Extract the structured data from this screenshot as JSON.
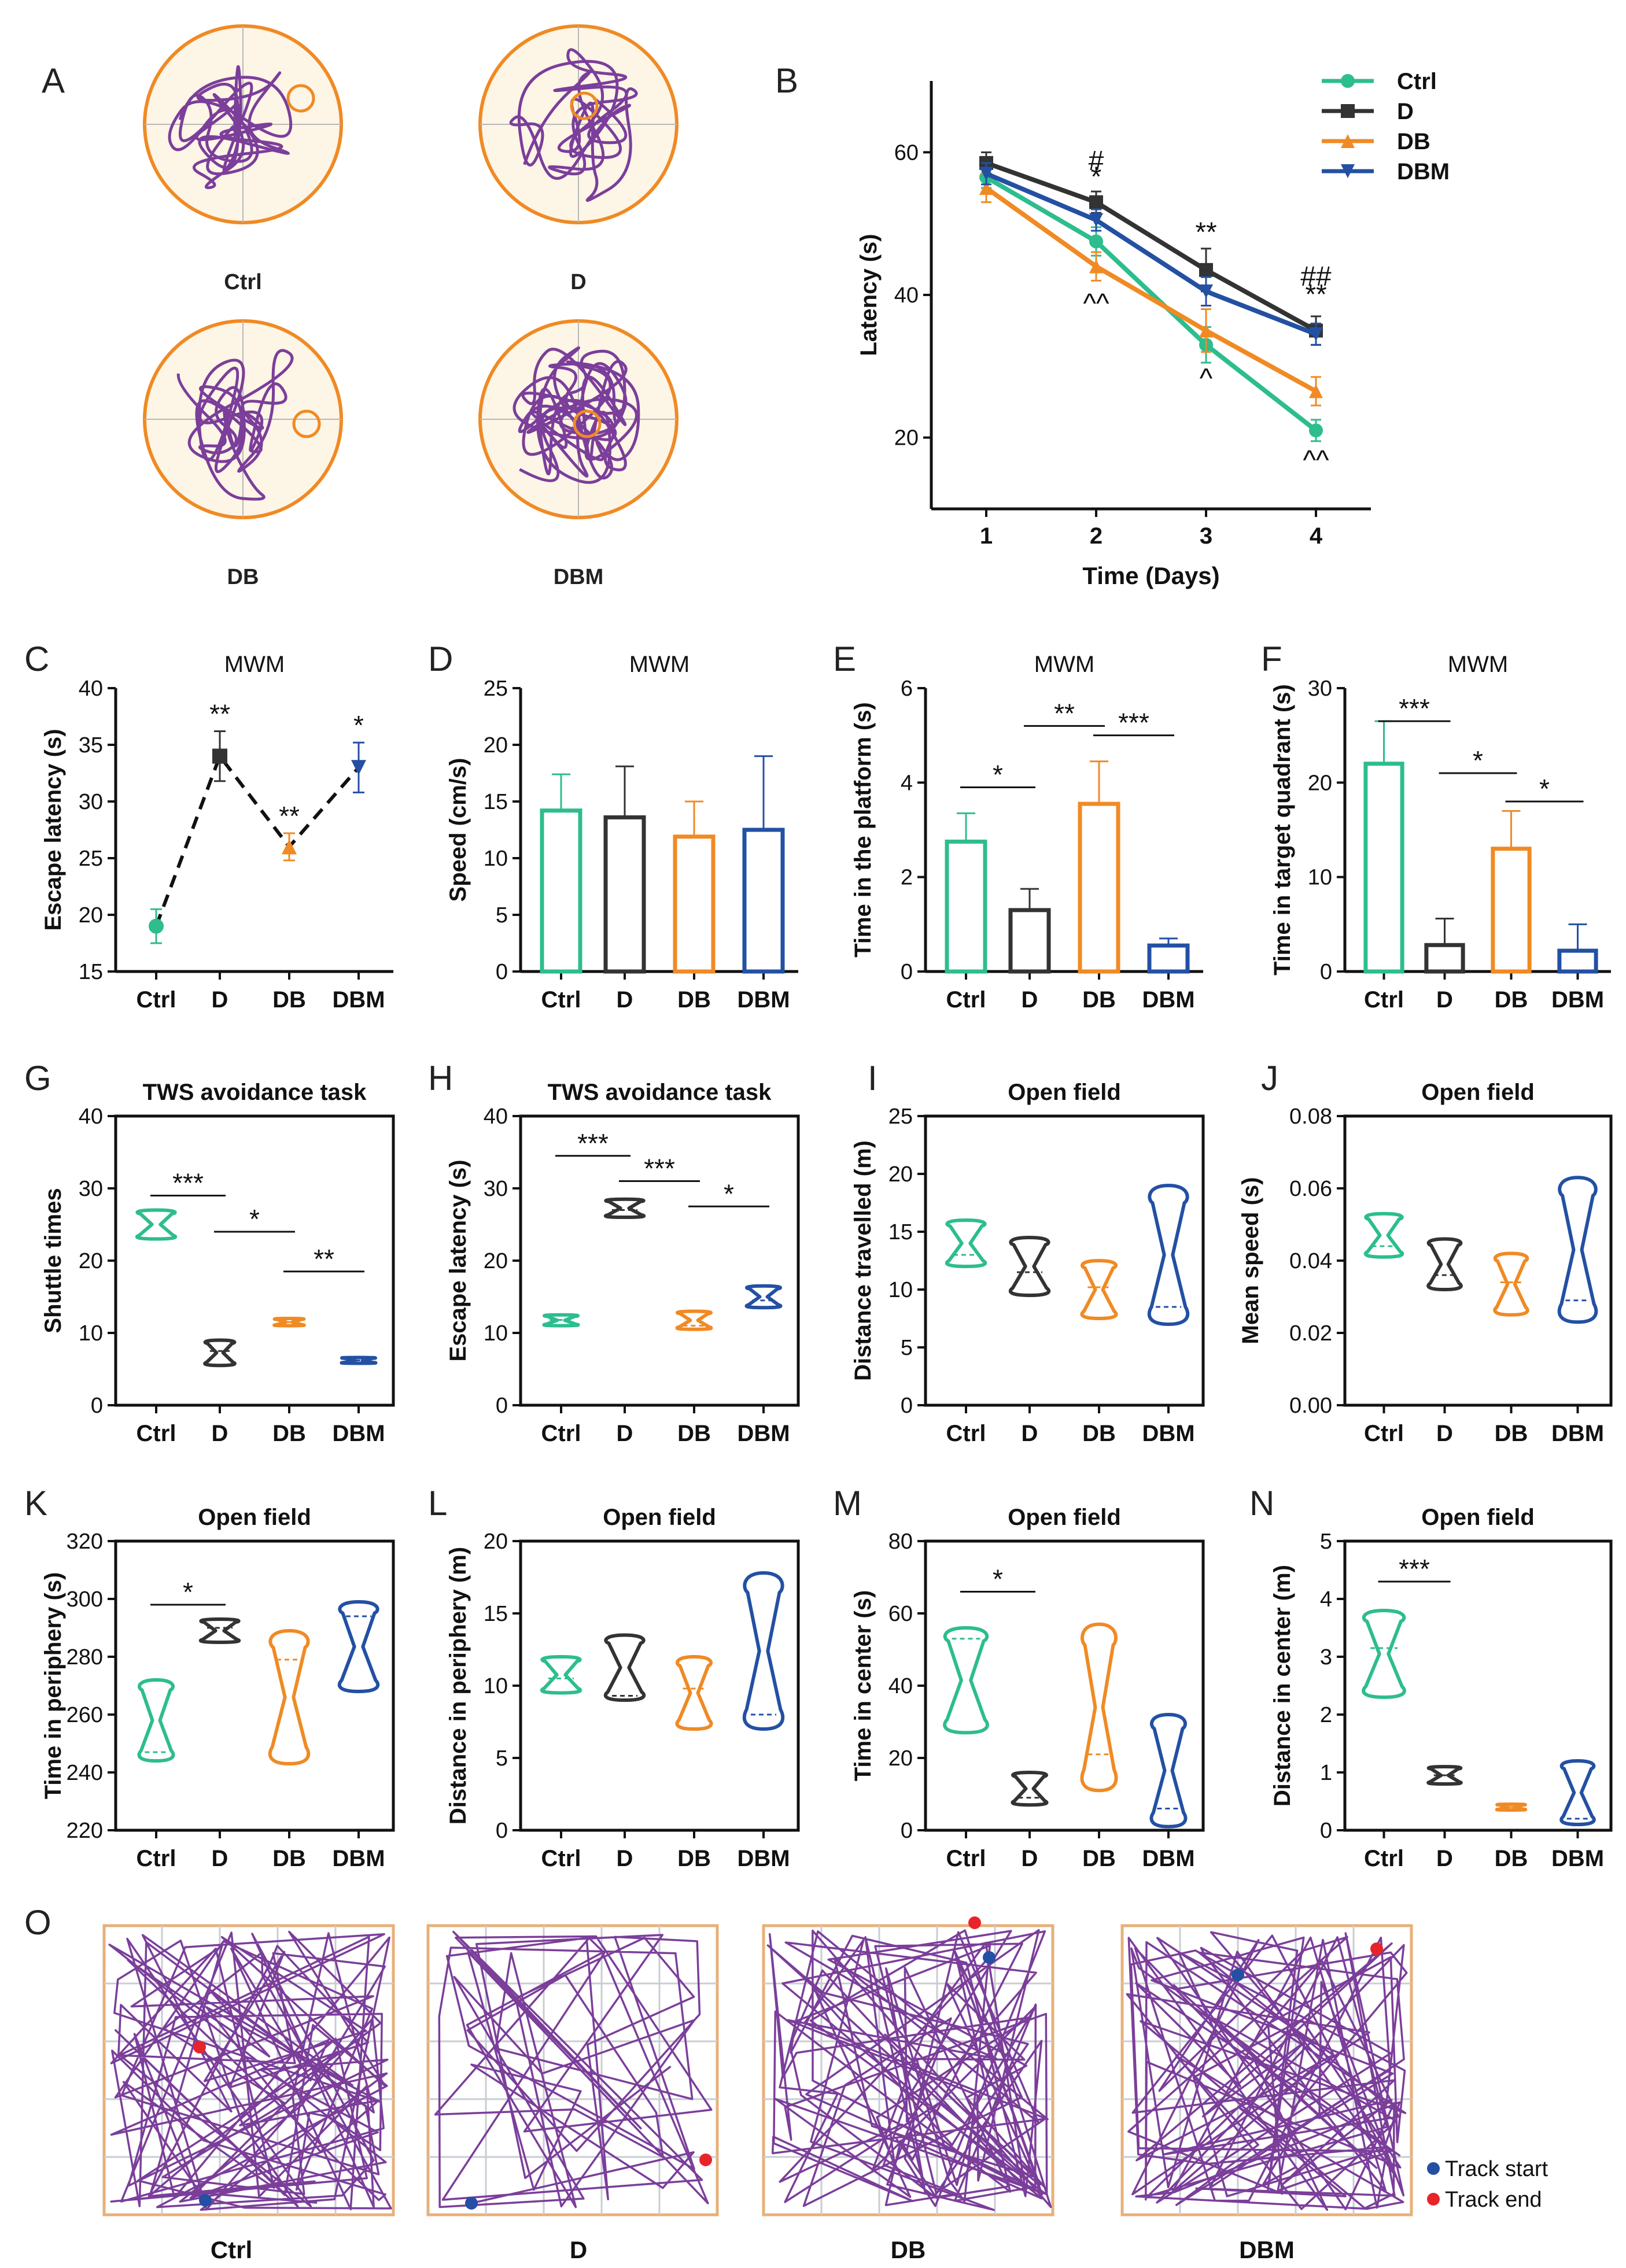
{
  "figure": {
    "panel_labels": [
      "A",
      "B",
      "C",
      "D",
      "E",
      "F",
      "G",
      "H",
      "I",
      "J",
      "K",
      "L",
      "M",
      "N",
      "O"
    ],
    "colors": {
      "Ctrl": "#2dbd8e",
      "D": "#333333",
      "DB": "#f08a24",
      "DBM": "#2350a3",
      "track": "#7b3e9a",
      "arena_fill": "#fdf5e6",
      "arena_edge": "#f08a24",
      "grid": "#c9cdd4",
      "start": "#2350a3",
      "end": "#e8242b"
    },
    "groups": [
      "Ctrl",
      "D",
      "DB",
      "DBM"
    ],
    "mwm_tracks": {
      "labels": [
        "Ctrl",
        "D",
        "DB",
        "DBM"
      ]
    },
    "open_field_tracks": {
      "labels": [
        "Ctrl",
        "D",
        "DB",
        "DBM"
      ],
      "legend": [
        "Track start",
        "Track end"
      ]
    }
  },
  "chart_data": [
    {
      "id": "B",
      "type": "line",
      "title": "",
      "xlabel": "Time (Days)",
      "ylabel": "Latency (s)",
      "x": [
        1,
        2,
        3,
        4
      ],
      "xlim": [
        0.5,
        4.5
      ],
      "ylim": [
        10,
        70
      ],
      "yticks": [
        20,
        40,
        60
      ],
      "series": [
        {
          "name": "Ctrl",
          "marker": "circle",
          "values": [
            56.5,
            47.5,
            33,
            21
          ],
          "err": [
            1.5,
            2,
            2.5,
            1.5
          ]
        },
        {
          "name": "D",
          "marker": "square",
          "values": [
            58.5,
            53,
            43.5,
            35
          ],
          "err": [
            1.5,
            1.5,
            3,
            2
          ]
        },
        {
          "name": "DB",
          "marker": "triangle",
          "values": [
            55,
            44,
            35,
            26.5
          ],
          "err": [
            2,
            2,
            3,
            2
          ]
        },
        {
          "name": "DBM",
          "marker": "tri-down",
          "values": [
            57,
            50.5,
            40.5,
            34.5
          ],
          "err": [
            1.5,
            1.5,
            2,
            1.5
          ]
        }
      ],
      "annotations": [
        {
          "x": 2,
          "y": 57.5,
          "text": "#"
        },
        {
          "x": 2,
          "y": 55.3,
          "text": "*"
        },
        {
          "x": 2,
          "y": 37.5,
          "text": "^^"
        },
        {
          "x": 3,
          "y": 47.5,
          "text": "**"
        },
        {
          "x": 3,
          "y": 27,
          "text": "^"
        },
        {
          "x": 4,
          "y": 41.3,
          "text": "##"
        },
        {
          "x": 4,
          "y": 38.8,
          "text": "**"
        },
        {
          "x": 4,
          "y": 15.5,
          "text": "^^"
        }
      ]
    },
    {
      "id": "C",
      "type": "scatter",
      "title": "MWM",
      "ylabel": "Escape latency (s)",
      "categories": [
        "Ctrl",
        "D",
        "DB",
        "DBM"
      ],
      "values": [
        19,
        34,
        26,
        33
      ],
      "err": [
        1.5,
        2.2,
        1.2,
        2.2
      ],
      "ylim": [
        15,
        40
      ],
      "yticks": [
        15,
        20,
        25,
        30,
        35,
        40
      ],
      "annotations": [
        {
          "i": 1,
          "text": "**"
        },
        {
          "i": 2,
          "text": "**"
        },
        {
          "i": 3,
          "text": "*"
        }
      ]
    },
    {
      "id": "D",
      "type": "bar",
      "title": "MWM",
      "ylabel": "Speed (cm/s)",
      "categories": [
        "Ctrl",
        "D",
        "DB",
        "DBM"
      ],
      "values": [
        14.2,
        13.6,
        11.9,
        12.5
      ],
      "err": [
        3.2,
        4.5,
        3.1,
        6.5
      ],
      "ylim": [
        0,
        25
      ],
      "yticks": [
        0,
        5,
        10,
        15,
        20,
        25
      ],
      "sig": []
    },
    {
      "id": "E",
      "type": "bar",
      "title": "MWM",
      "ylabel": "Time in the platform (s)",
      "categories": [
        "Ctrl",
        "D",
        "DB",
        "DBM"
      ],
      "values": [
        2.75,
        1.3,
        3.55,
        0.55
      ],
      "err": [
        0.6,
        0.45,
        0.9,
        0.15
      ],
      "ylim": [
        0,
        6
      ],
      "yticks": [
        0,
        2,
        4,
        6
      ],
      "sig": [
        {
          "a": 0,
          "b": 1,
          "y": 3.9,
          "text": "*"
        },
        {
          "a": 1,
          "b": 2,
          "y": 5.2,
          "text": "**"
        },
        {
          "a": 2,
          "b": 3,
          "y": 5.0,
          "text": "***"
        }
      ]
    },
    {
      "id": "F",
      "type": "bar",
      "title": "MWM",
      "ylabel": "Time in target quadrant (s)",
      "categories": [
        "Ctrl",
        "D",
        "DB",
        "DBM"
      ],
      "values": [
        22,
        2.8,
        13,
        2.2
      ],
      "err": [
        4.5,
        2.8,
        4,
        2.8
      ],
      "ylim": [
        0,
        30
      ],
      "yticks": [
        0,
        10,
        20,
        30
      ],
      "sig": [
        {
          "a": 0,
          "b": 1,
          "y": 26.5,
          "text": "***"
        },
        {
          "a": 1,
          "b": 2,
          "y": 21,
          "text": "*"
        },
        {
          "a": 2,
          "b": 3,
          "y": 18,
          "text": "*"
        }
      ]
    },
    {
      "id": "G",
      "type": "violin",
      "title": "TWS avoidance task",
      "ylabel": "Shuttle times",
      "categories": [
        "Ctrl",
        "D",
        "DB",
        "DBM"
      ],
      "ylim": [
        0,
        40
      ],
      "yticks": [
        0,
        10,
        20,
        30,
        40
      ],
      "violins": [
        {
          "min": 23,
          "max": 27,
          "median": 23,
          "width": 0.9
        },
        {
          "min": 5.5,
          "max": 9,
          "median": 7.5,
          "width": 0.7
        },
        {
          "min": 11,
          "max": 12,
          "median": 11.5,
          "width": 0.7
        },
        {
          "min": 5.8,
          "max": 6.6,
          "median": 6.2,
          "width": 0.8
        }
      ],
      "sig": [
        {
          "a": 0,
          "b": 1,
          "y": 29,
          "text": "***"
        },
        {
          "a": 1,
          "b": 2,
          "y": 24,
          "text": "*"
        },
        {
          "a": 2,
          "b": 3,
          "y": 18.5,
          "text": "**"
        }
      ]
    },
    {
      "id": "H",
      "type": "violin",
      "title": "TWS avoidance task",
      "ylabel": "Escape latency (s)",
      "categories": [
        "Ctrl",
        "D",
        "DB",
        "DBM"
      ],
      "ylim": [
        0,
        40
      ],
      "yticks": [
        0,
        10,
        20,
        30,
        40
      ],
      "violins": [
        {
          "min": 11,
          "max": 12.5,
          "median": 11.8,
          "width": 0.8
        },
        {
          "min": 26,
          "max": 28.5,
          "median": 27,
          "width": 0.9
        },
        {
          "min": 10.5,
          "max": 13,
          "median": 11,
          "width": 0.8
        },
        {
          "min": 13.5,
          "max": 16.5,
          "median": 14.5,
          "width": 0.8
        }
      ],
      "sig": [
        {
          "a": 0,
          "b": 1,
          "y": 34.5,
          "text": "***"
        },
        {
          "a": 1,
          "b": 2,
          "y": 31,
          "text": "***"
        },
        {
          "a": 2,
          "b": 3,
          "y": 27.5,
          "text": "*"
        }
      ]
    },
    {
      "id": "I",
      "type": "violin",
      "title": "Open field",
      "ylabel": "Distance travelled (m)",
      "categories": [
        "Ctrl",
        "D",
        "DB",
        "DBM"
      ],
      "ylim": [
        0,
        25
      ],
      "yticks": [
        0,
        5,
        10,
        15,
        20,
        25
      ],
      "violins": [
        {
          "min": 12,
          "max": 16,
          "median": 13,
          "width": 0.9
        },
        {
          "min": 9.5,
          "max": 14.5,
          "median": 11.5,
          "width": 0.9
        },
        {
          "min": 7.5,
          "max": 12.5,
          "median": 10.2,
          "width": 0.8
        },
        {
          "min": 7,
          "max": 19,
          "median": 8.5,
          "width": 0.9
        }
      ],
      "sig": []
    },
    {
      "id": "J",
      "type": "violin",
      "title": "Open field",
      "ylabel": "Mean speed (s)",
      "categories": [
        "Ctrl",
        "D",
        "DB",
        "DBM"
      ],
      "ylim": [
        0,
        0.08
      ],
      "yticks": [
        0,
        0.02,
        0.04,
        0.06,
        0.08
      ],
      "violins": [
        {
          "min": 0.041,
          "max": 0.053,
          "median": 0.044,
          "width": 0.9
        },
        {
          "min": 0.032,
          "max": 0.046,
          "median": 0.036,
          "width": 0.8
        },
        {
          "min": 0.025,
          "max": 0.042,
          "median": 0.034,
          "width": 0.8
        },
        {
          "min": 0.023,
          "max": 0.063,
          "median": 0.029,
          "width": 0.9
        }
      ],
      "sig": []
    },
    {
      "id": "K",
      "type": "violin",
      "title": "Open field",
      "ylabel": "Time in periphery (s)",
      "categories": [
        "Ctrl",
        "D",
        "DB",
        "DBM"
      ],
      "ylim": [
        220,
        320
      ],
      "yticks": [
        220,
        240,
        260,
        280,
        300,
        320
      ],
      "violins": [
        {
          "min": 244,
          "max": 272,
          "median": 247,
          "width": 0.8
        },
        {
          "min": 285,
          "max": 293,
          "median": 290,
          "width": 0.9
        },
        {
          "min": 243,
          "max": 289,
          "median": 279,
          "width": 0.9
        },
        {
          "min": 268,
          "max": 299,
          "median": 294,
          "width": 0.9
        }
      ],
      "sig": [
        {
          "a": 0,
          "b": 1,
          "y": 298,
          "text": "*"
        }
      ]
    },
    {
      "id": "L",
      "type": "violin",
      "title": "Open field",
      "ylabel": "Distance  in  periphery (m)",
      "categories": [
        "Ctrl",
        "D",
        "DB",
        "DBM"
      ],
      "ylim": [
        0,
        20
      ],
      "yticks": [
        0,
        5,
        10,
        15,
        20
      ],
      "violins": [
        {
          "min": 9.5,
          "max": 12,
          "median": 10.5,
          "width": 0.9
        },
        {
          "min": 9,
          "max": 13.5,
          "median": 9.3,
          "width": 0.9
        },
        {
          "min": 7,
          "max": 12,
          "median": 9.8,
          "width": 0.8
        },
        {
          "min": 7,
          "max": 17.8,
          "median": 8,
          "width": 0.9
        }
      ],
      "sig": []
    },
    {
      "id": "M",
      "type": "violin",
      "title": "Open field",
      "ylabel": "Time in center (s)",
      "categories": [
        "Ctrl",
        "D",
        "DB",
        "DBM"
      ],
      "ylim": [
        0,
        80
      ],
      "yticks": [
        0,
        20,
        40,
        60,
        80
      ],
      "violins": [
        {
          "min": 27,
          "max": 56,
          "median": 53,
          "width": 1.0
        },
        {
          "min": 7,
          "max": 16,
          "median": 9,
          "width": 0.8
        },
        {
          "min": 11,
          "max": 57,
          "median": 21,
          "width": 0.8
        },
        {
          "min": 1,
          "max": 32,
          "median": 6,
          "width": 0.8
        }
      ],
      "sig": [
        {
          "a": 0,
          "b": 1,
          "y": 66,
          "text": "*"
        }
      ]
    },
    {
      "id": "N",
      "type": "violin",
      "title": "Open field",
      "ylabel": "Distance in center (m)",
      "categories": [
        "Ctrl",
        "D",
        "DB",
        "DBM"
      ],
      "ylim": [
        0,
        5
      ],
      "yticks": [
        0,
        1,
        2,
        3,
        4,
        5
      ],
      "violins": [
        {
          "min": 2.3,
          "max": 3.8,
          "median": 3.15,
          "width": 1.0
        },
        {
          "min": 0.8,
          "max": 1.1,
          "median": 0.95,
          "width": 0.8
        },
        {
          "min": 0.35,
          "max": 0.45,
          "median": 0.4,
          "width": 0.7
        },
        {
          "min": 0.1,
          "max": 1.2,
          "median": 0.2,
          "width": 0.8
        }
      ],
      "sig": [
        {
          "a": 0,
          "b": 1,
          "y": 4.3,
          "text": "***"
        }
      ]
    }
  ]
}
